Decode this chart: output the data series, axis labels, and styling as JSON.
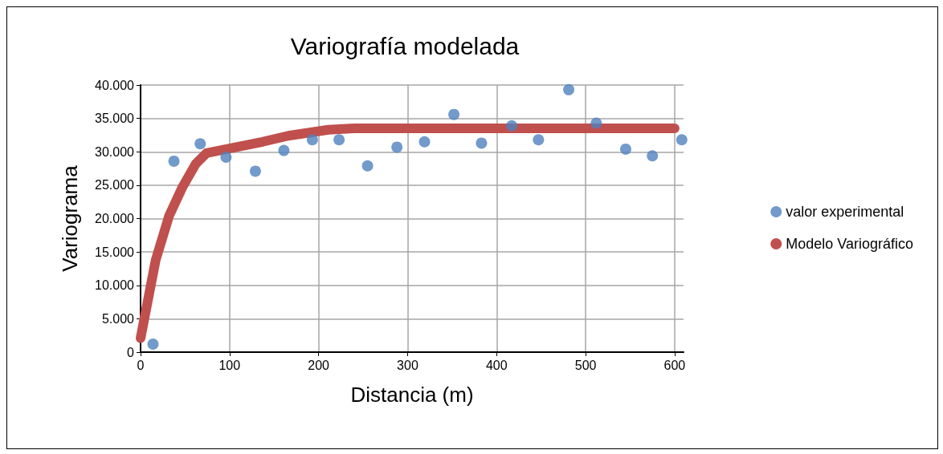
{
  "chart_data": {
    "type": "scatter",
    "title": "Variografía modelada",
    "xlabel": "Distancia (m)",
    "ylabel": "Variograma",
    "xlim": [
      0,
      610
    ],
    "xticks": [
      0,
      100,
      200,
      300,
      400,
      500,
      600
    ],
    "ylim": [
      0,
      40000
    ],
    "yticks": [
      {
        "value": 0,
        "label": "0"
      },
      {
        "value": 5000,
        "label": "5.000"
      },
      {
        "value": 10000,
        "label": "10.000"
      },
      {
        "value": 15000,
        "label": "15.000"
      },
      {
        "value": 20000,
        "label": "20.000"
      },
      {
        "value": 25000,
        "label": "25.000"
      },
      {
        "value": 30000,
        "label": "30.000"
      },
      {
        "value": 35000,
        "label": "35.000"
      },
      {
        "value": 40000,
        "label": "40.000"
      }
    ],
    "grid": true,
    "legend": "right",
    "series": [
      {
        "name": "valor experimental",
        "type": "scatter",
        "marker": "circle",
        "color": "#4f81bd",
        "x": [
          14,
          37.5,
          67,
          96,
          129,
          161,
          193,
          223,
          255,
          288,
          319,
          352,
          383,
          417,
          447,
          481,
          512,
          545,
          575,
          608
        ],
        "values": [
          1200,
          28600,
          31200,
          29200,
          27100,
          30200,
          31800,
          31800,
          27900,
          30700,
          31500,
          35600,
          31300,
          33900,
          31800,
          39300,
          34300,
          30400,
          29400,
          31800
        ]
      },
      {
        "name": "Modelo Variográfico",
        "type": "line",
        "marker": "none",
        "color": "#c0504d",
        "x": [
          0,
          17,
          32,
          47,
          62,
          74,
          137,
          166,
          211,
          240,
          600
        ],
        "values": [
          2100,
          13800,
          20400,
          24700,
          28200,
          29800,
          31500,
          32400,
          33300,
          33500,
          33500
        ]
      }
    ]
  }
}
